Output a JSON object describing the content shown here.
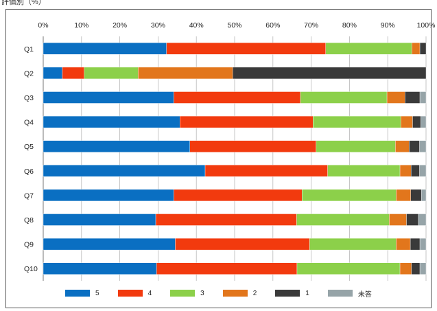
{
  "header": {
    "text": "評価別（%）"
  },
  "colors": {
    "5": "#0a6fc2",
    "4": "#f23a0e",
    "3": "#8cd04a",
    "2": "#e2761c",
    "1": "#3a3a3a",
    "unanswered": "#96a4a8"
  },
  "legend": [
    {
      "key": "5",
      "label": "5",
      "color": "#0a6fc2"
    },
    {
      "key": "4",
      "label": "4",
      "color": "#f23a0e"
    },
    {
      "key": "3",
      "label": "3",
      "color": "#8cd04a"
    },
    {
      "key": "2",
      "label": "2",
      "color": "#e2761c"
    },
    {
      "key": "1",
      "label": "1",
      "color": "#3a3a3a"
    },
    {
      "key": "unanswered",
      "label": "未答",
      "color": "#96a4a8"
    }
  ],
  "chart_data": {
    "type": "bar",
    "orientation": "horizontal",
    "stacked": true,
    "percent": true,
    "xlim": [
      0,
      100
    ],
    "xticks": [
      "0%",
      "10%",
      "20%",
      "30%",
      "40%",
      "50%",
      "60%",
      "70%",
      "80%",
      "90%",
      "100%"
    ],
    "grid": true,
    "legend_position": "bottom",
    "categories": [
      "Q1",
      "Q2",
      "Q3",
      "Q4",
      "Q5",
      "Q6",
      "Q7",
      "Q8",
      "Q9",
      "Q10"
    ],
    "series": [
      {
        "name": "5",
        "values": [
          32.2,
          5.0,
          34.1,
          35.7,
          38.3,
          42.3,
          34.1,
          29.4,
          34.5,
          29.6
        ]
      },
      {
        "name": "4",
        "values": [
          41.6,
          5.7,
          33.1,
          34.8,
          33.0,
          32.0,
          33.5,
          36.8,
          35.1,
          36.7
        ]
      },
      {
        "name": "3",
        "values": [
          22.5,
          14.1,
          22.6,
          22.9,
          20.7,
          18.9,
          24.6,
          24.2,
          22.6,
          26.9
        ]
      },
      {
        "name": "2",
        "values": [
          2.1,
          24.7,
          4.7,
          3.1,
          3.6,
          2.9,
          3.8,
          4.5,
          3.7,
          3.0
        ]
      },
      {
        "name": "1",
        "values": [
          1.6,
          50.5,
          3.9,
          2.1,
          2.7,
          2.2,
          2.8,
          3.1,
          2.5,
          2.2
        ]
      },
      {
        "name": "未答",
        "values": [
          0.0,
          0.0,
          1.6,
          1.4,
          1.7,
          1.7,
          1.2,
          2.0,
          1.6,
          1.6
        ]
      }
    ]
  }
}
